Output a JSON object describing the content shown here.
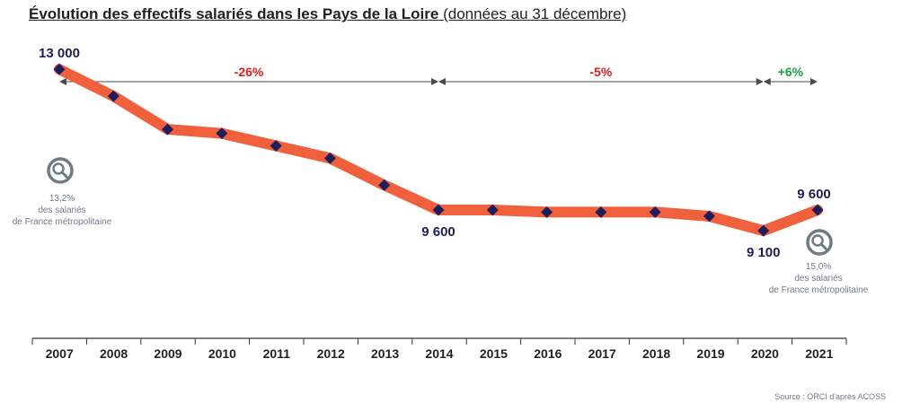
{
  "title_bold": "Évolution des effectifs salariés dans les Pays de la Loire",
  "title_rest": "(données au 31 décembre)",
  "source": "Source : ORCI d'après ACOSS",
  "colors": {
    "line": "#f0603c",
    "marker": "#1e1e5a",
    "decrease": "#d81e1e",
    "increase": "#1e9e46",
    "note": "#6e7b85"
  },
  "periods": [
    {
      "label": "-26%",
      "from": "2007",
      "to": "2014",
      "tone": "decrease"
    },
    {
      "label": "-5%",
      "from": "2014",
      "to": "2020",
      "tone": "decrease"
    },
    {
      "label": "+6%",
      "from": "2020",
      "to": "2021",
      "tone": "increase"
    }
  ],
  "notes": [
    {
      "year": "2007",
      "icon": "magnifier-icon",
      "lines": [
        "13,2%",
        "des salariés",
        "de France métropolitaine"
      ]
    },
    {
      "year": "2021",
      "icon": "magnifier-icon",
      "lines": [
        "15,0%",
        "des salariés",
        "de France métropolitaine"
      ]
    }
  ],
  "chart_data": {
    "type": "line",
    "categories": [
      "2007",
      "2008",
      "2009",
      "2010",
      "2011",
      "2012",
      "2013",
      "2014",
      "2015",
      "2016",
      "2017",
      "2018",
      "2019",
      "2020",
      "2021"
    ],
    "values": [
      13000,
      12350,
      11550,
      11450,
      11150,
      10850,
      10200,
      9600,
      9600,
      9550,
      9550,
      9550,
      9450,
      9100,
      9600
    ],
    "data_labels": [
      {
        "year": "2007",
        "text": "13 000"
      },
      {
        "year": "2014",
        "text": "9 600"
      },
      {
        "year": "2020",
        "text": "9 100"
      },
      {
        "year": "2021",
        "text": "9 600"
      }
    ],
    "ylim": [
      6500,
      14500
    ],
    "grid": false,
    "xlabel": "",
    "ylabel": ""
  }
}
